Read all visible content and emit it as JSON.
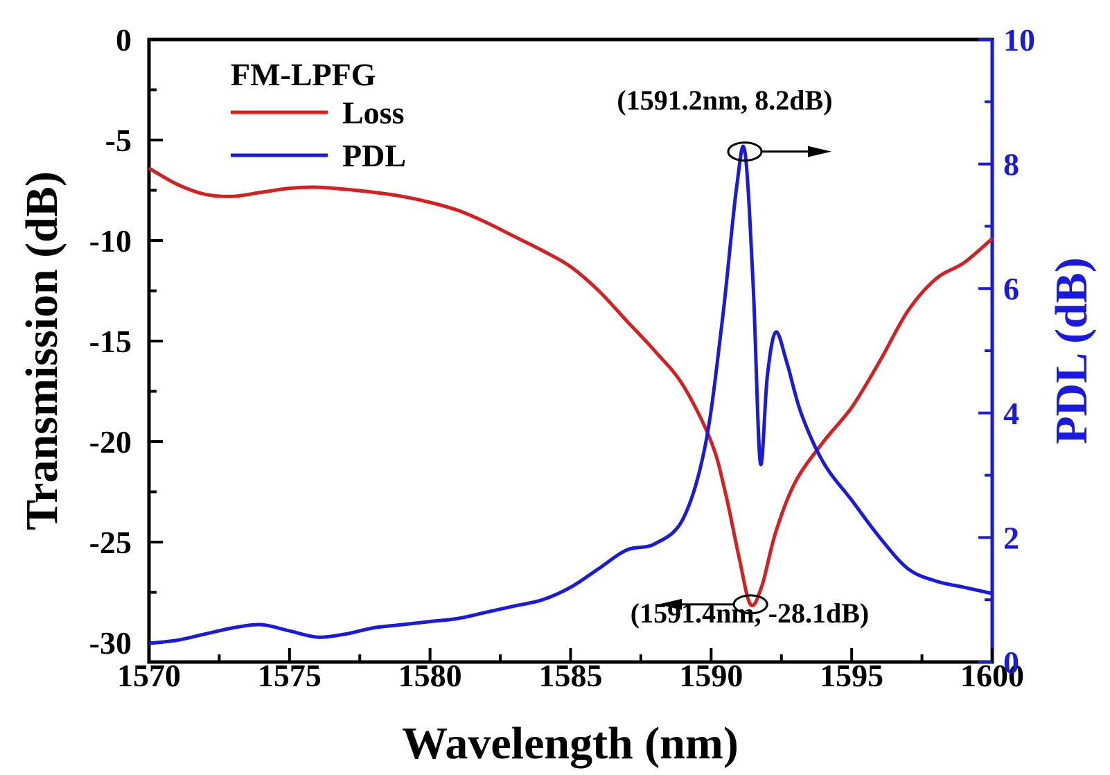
{
  "chart_data": {
    "type": "line",
    "x": {
      "label": "Wavelength (nm)",
      "range": [
        1570,
        1600
      ],
      "ticks": [
        1570,
        1575,
        1580,
        1585,
        1590,
        1595,
        1600
      ],
      "tick_labels": [
        "1570",
        "1575",
        "1580",
        "1585",
        "1590",
        "1595",
        "1600"
      ]
    },
    "y_left": {
      "label": "Transmission (dB)",
      "range": [
        -31,
        0
      ],
      "ticks": [
        0,
        -5,
        -10,
        -15,
        -20,
        -25,
        -30
      ],
      "tick_labels": [
        "0",
        "-5",
        "-10",
        "-15",
        "-20",
        "-25",
        "-30"
      ]
    },
    "y_right": {
      "label": "PDL (dB)",
      "range": [
        0,
        10
      ],
      "ticks": [
        0,
        2,
        4,
        6,
        8,
        10
      ],
      "tick_labels": [
        "0",
        "2",
        "4",
        "6",
        "8",
        "10"
      ]
    },
    "legend": {
      "title": "FM-LPFG",
      "position": "top-left",
      "entries": [
        {
          "name": "Loss",
          "color": "#d42020"
        },
        {
          "name": "PDL",
          "color": "#1a1adc"
        }
      ]
    },
    "series": [
      {
        "name": "Loss",
        "axis": "left",
        "color": "#d42020",
        "points": [
          [
            1570,
            -6.4
          ],
          [
            1571,
            -7.2
          ],
          [
            1572,
            -7.7
          ],
          [
            1573,
            -7.8
          ],
          [
            1574,
            -7.6
          ],
          [
            1575,
            -7.4
          ],
          [
            1576,
            -7.35
          ],
          [
            1577,
            -7.45
          ],
          [
            1578,
            -7.6
          ],
          [
            1579,
            -7.8
          ],
          [
            1580,
            -8.1
          ],
          [
            1581,
            -8.5
          ],
          [
            1582,
            -9.1
          ],
          [
            1583,
            -9.8
          ],
          [
            1584,
            -10.5
          ],
          [
            1585,
            -11.3
          ],
          [
            1586,
            -12.5
          ],
          [
            1587,
            -14.0
          ],
          [
            1588,
            -15.5
          ],
          [
            1589,
            -17.2
          ],
          [
            1590,
            -20.0
          ],
          [
            1590.5,
            -22.5
          ],
          [
            1591.0,
            -25.8
          ],
          [
            1591.4,
            -28.1
          ],
          [
            1591.8,
            -27.2
          ],
          [
            1592.3,
            -24.5
          ],
          [
            1593,
            -22.0
          ],
          [
            1594,
            -20.0
          ],
          [
            1595,
            -18.3
          ],
          [
            1596,
            -16.0
          ],
          [
            1597,
            -13.5
          ],
          [
            1598,
            -11.9
          ],
          [
            1599,
            -11.1
          ],
          [
            1600,
            -9.9
          ]
        ]
      },
      {
        "name": "PDL",
        "axis": "right",
        "color": "#1a1adc",
        "points": [
          [
            1570,
            0.3
          ],
          [
            1571,
            0.35
          ],
          [
            1572,
            0.45
          ],
          [
            1573,
            0.55
          ],
          [
            1574,
            0.6
          ],
          [
            1575,
            0.5
          ],
          [
            1576,
            0.4
          ],
          [
            1577,
            0.45
          ],
          [
            1578,
            0.55
          ],
          [
            1579,
            0.6
          ],
          [
            1580,
            0.65
          ],
          [
            1581,
            0.7
          ],
          [
            1582,
            0.8
          ],
          [
            1583,
            0.9
          ],
          [
            1584,
            1.0
          ],
          [
            1585,
            1.2
          ],
          [
            1586,
            1.5
          ],
          [
            1587,
            1.8
          ],
          [
            1588,
            1.9
          ],
          [
            1589,
            2.3
          ],
          [
            1589.8,
            3.5
          ],
          [
            1590.4,
            5.5
          ],
          [
            1590.9,
            7.6
          ],
          [
            1591.2,
            8.2
          ],
          [
            1591.5,
            6.0
          ],
          [
            1591.75,
            3.2
          ],
          [
            1592.0,
            4.6
          ],
          [
            1592.3,
            5.3
          ],
          [
            1592.7,
            4.8
          ],
          [
            1593.2,
            4.0
          ],
          [
            1594,
            3.2
          ],
          [
            1595,
            2.6
          ],
          [
            1596,
            2.0
          ],
          [
            1597,
            1.5
          ],
          [
            1598,
            1.3
          ],
          [
            1599,
            1.2
          ],
          [
            1600,
            1.1
          ]
        ]
      }
    ],
    "annotations": [
      {
        "text": "(1591.2nm, 8.2dB)",
        "x": 1591.2,
        "y": 8.2,
        "axis": "right",
        "arrow": "right"
      },
      {
        "text": "(1591.4nm, -28.1dB)",
        "x": 1591.4,
        "y": -28.1,
        "axis": "left",
        "arrow": "left"
      }
    ]
  }
}
